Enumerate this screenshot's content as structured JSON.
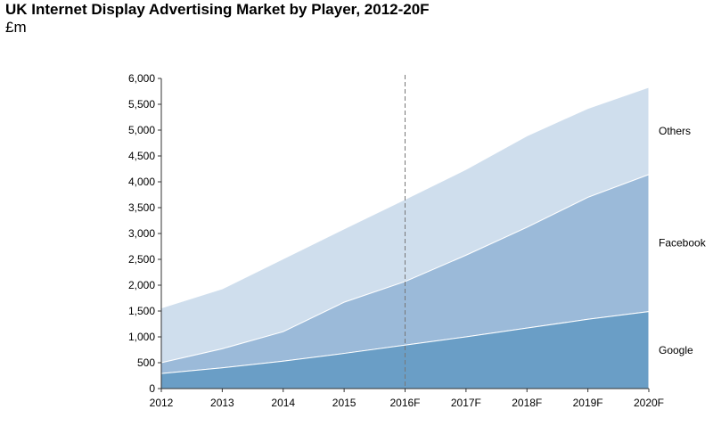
{
  "chart_data": {
    "type": "area",
    "title": "UK Internet Display Advertising Market by Player, 2012-20F",
    "subtitle": "£m",
    "stacked": true,
    "categories": [
      "2012",
      "2013",
      "2014",
      "2015",
      "2016F",
      "2017F",
      "2018F",
      "2019F",
      "2020F"
    ],
    "series": [
      {
        "name": "Google",
        "values": [
          290,
          400,
          530,
          680,
          840,
          1000,
          1170,
          1340,
          1490
        ],
        "color": "#6a9ec6"
      },
      {
        "name": "Facebook",
        "values": [
          210,
          370,
          570,
          990,
          1230,
          1580,
          1950,
          2360,
          2650
        ],
        "color": "#9bbad9"
      },
      {
        "name": "Others",
        "values": [
          1060,
          1160,
          1410,
          1420,
          1590,
          1660,
          1770,
          1720,
          1690
        ],
        "color": "#cfdeed"
      }
    ],
    "ylim": [
      0,
      6000
    ],
    "yticks": [
      "0",
      "500",
      "1,000",
      "1,500",
      "2,000",
      "2,500",
      "3,000",
      "3,500",
      "4,000",
      "4,500",
      "5,000",
      "5,500",
      "6,000"
    ],
    "grid": false,
    "forecast_divider_at": "2016F",
    "legend_placement": "right"
  }
}
